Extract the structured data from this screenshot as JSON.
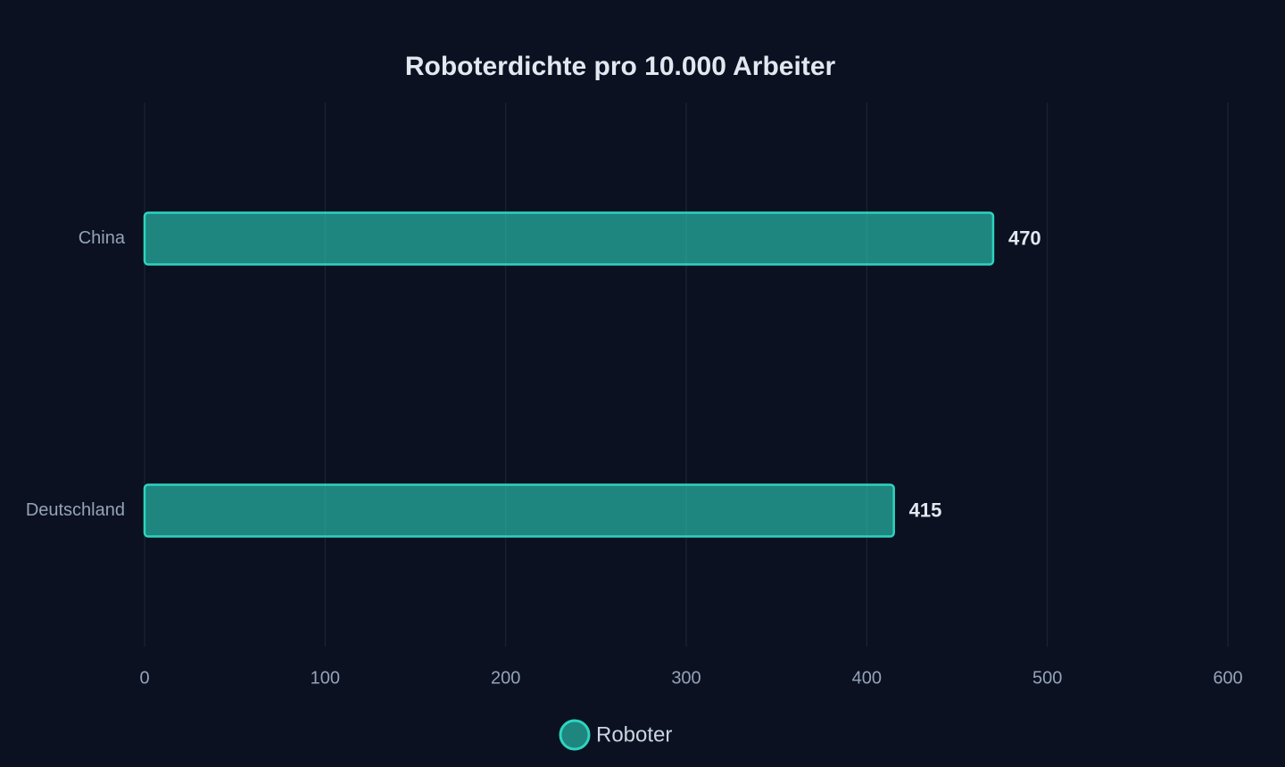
{
  "chart_data": {
    "type": "bar",
    "orientation": "horizontal",
    "title": "Roboterdichte pro 10.000 Arbeiter",
    "categories": [
      "China",
      "Deutschland"
    ],
    "series": [
      {
        "name": "Roboter",
        "color": "#2dd4bf",
        "values": [
          470,
          415
        ]
      }
    ],
    "xlim": [
      0,
      600
    ],
    "xticks": [
      0,
      100,
      200,
      300,
      400,
      500,
      600
    ],
    "grid": true,
    "legend": "bottom"
  }
}
